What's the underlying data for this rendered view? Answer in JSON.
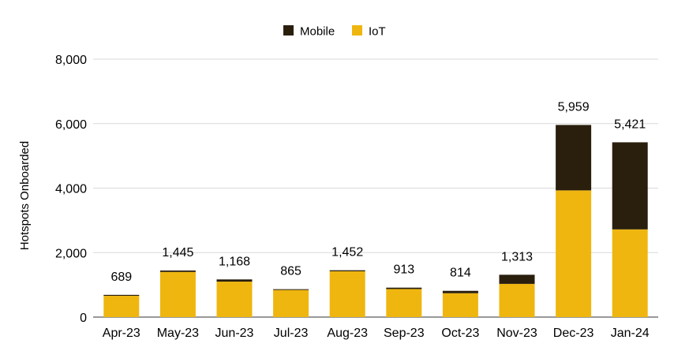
{
  "chart_data": {
    "type": "bar",
    "stacked": true,
    "ylabel": "Hotspots Onboarded",
    "xlabel": "",
    "ylim": [
      0,
      8000
    ],
    "yticks": [
      0,
      2000,
      4000,
      6000,
      8000
    ],
    "ytick_labels": [
      "0",
      "2,000",
      "4,000",
      "6,000",
      "8,000"
    ],
    "categories": [
      "Apr-23",
      "May-23",
      "Jun-23",
      "Jul-23",
      "Aug-23",
      "Sep-23",
      "Oct-23",
      "Nov-23",
      "Dec-23",
      "Jan-24"
    ],
    "series": [
      {
        "name": "IoT",
        "color": "#efb60f",
        "values": [
          660,
          1400,
          1100,
          840,
          1420,
          870,
          740,
          1030,
          3930,
          2720
        ]
      },
      {
        "name": "Mobile",
        "color": "#2a1f0d",
        "values": [
          29,
          45,
          68,
          25,
          32,
          43,
          74,
          283,
          2029,
          2701
        ]
      }
    ],
    "totals": [
      689,
      1445,
      1168,
      865,
      1452,
      913,
      814,
      1313,
      5959,
      5421
    ],
    "total_labels": [
      "689",
      "1,445",
      "1,168",
      "865",
      "1,452",
      "913",
      "814",
      "1,313",
      "5,959",
      "5,421"
    ],
    "legend": {
      "position": "top",
      "items": [
        "Mobile",
        "IoT"
      ]
    },
    "grid": true
  }
}
